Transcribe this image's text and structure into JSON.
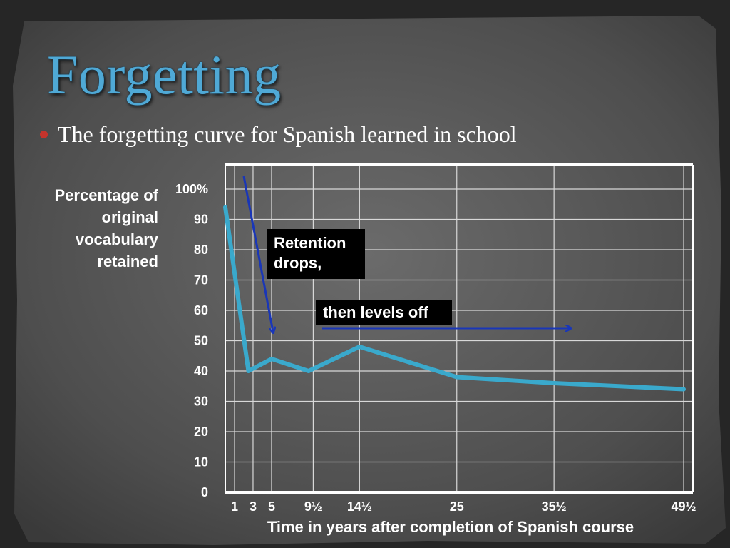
{
  "slide": {
    "title": "Forgetting",
    "bullet": "The forgetting curve for Spanish learned in school"
  },
  "annotations": {
    "drop": "Retention drops,",
    "level": "then levels off"
  },
  "colors": {
    "line": "#3aa9cc",
    "arrow": "#1936b8",
    "title": "#4fa9d6",
    "bullet": "#c5342c"
  },
  "chart_data": {
    "type": "line",
    "title": "",
    "ylabel": "Percentage of original vocabulary retained",
    "xlabel": "Time in years after completion of Spanish course",
    "ylim": [
      0,
      100
    ],
    "yticks": [
      0,
      10,
      20,
      30,
      40,
      50,
      60,
      70,
      80,
      90,
      100
    ],
    "yticklabels": [
      "0",
      "10",
      "20",
      "30",
      "40",
      "50",
      "60",
      "70",
      "80",
      "90",
      "100%"
    ],
    "xlim": [
      0,
      50.5
    ],
    "xticks": [
      1,
      3,
      5,
      9.5,
      14.5,
      25,
      35.5,
      49.5
    ],
    "xticklabels": [
      "1",
      "3",
      "5",
      "9½",
      "14½",
      "25",
      "35½",
      "49½"
    ],
    "grid": true,
    "series": [
      {
        "x": [
          0,
          2.5,
          5,
          9,
          14.5,
          25,
          35.5,
          49.5
        ],
        "y": [
          94,
          40,
          44,
          40,
          48,
          38,
          36,
          34
        ]
      }
    ]
  }
}
